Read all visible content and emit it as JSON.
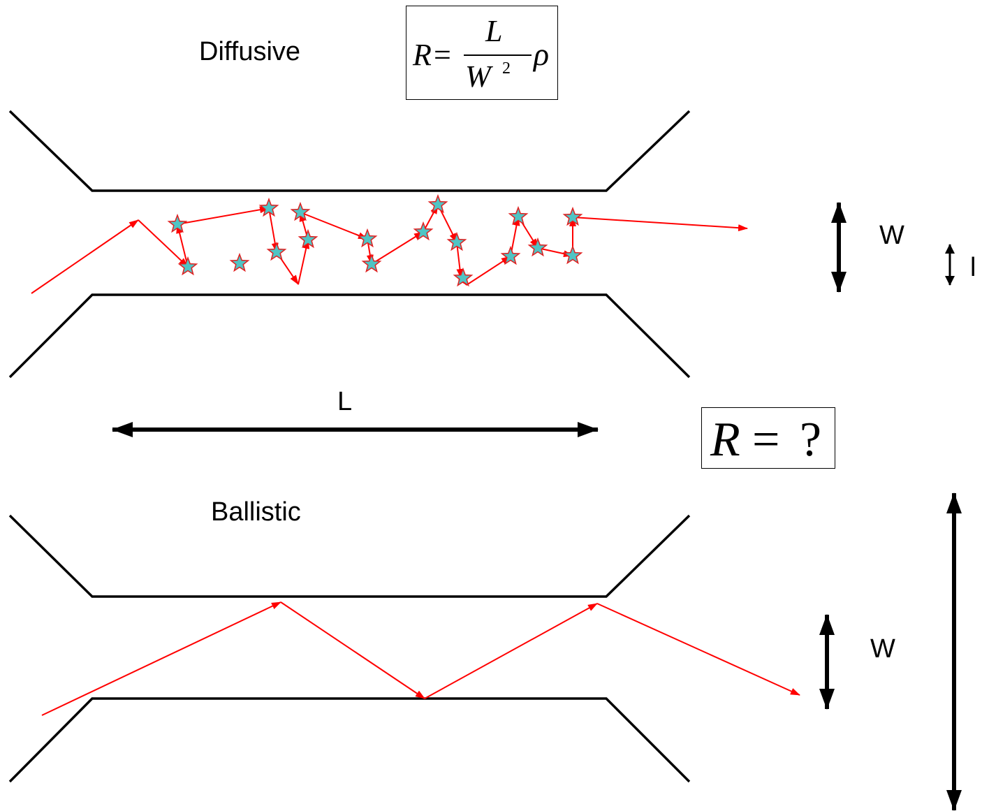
{
  "diffusive": {
    "title": "Diffusive",
    "formula": {
      "lhs": "R",
      "equals": "=",
      "numerator": "L",
      "denominator_base": "W",
      "denominator_exp": "2",
      "factor": "ρ"
    },
    "width_label": "W",
    "mean_free_path_label": "l",
    "scatterer_count": 20
  },
  "length_label": "L",
  "question": {
    "lhs": "R",
    "equals": "=",
    "rhs": "?"
  },
  "ballistic": {
    "title": "Ballistic",
    "width_label": "W"
  },
  "colors": {
    "wall": "#000000",
    "trajectory": "#ff0000",
    "scatterer_fill": "#4fc4c4",
    "scatterer_stroke": "#e02020"
  }
}
